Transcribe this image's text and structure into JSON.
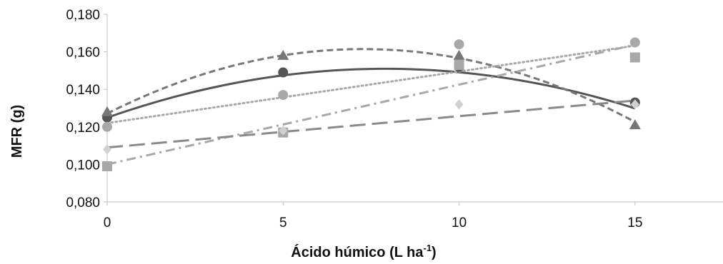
{
  "chart_data": {
    "type": "scatter",
    "xlabel": "Ácido húmico (L ha",
    "xlabel_sup": "-1",
    "xlabel_close": ")",
    "ylabel": "MFR (g)",
    "xlim": [
      0,
      17.5
    ],
    "ylim": [
      0.08,
      0.18
    ],
    "x_ticks": [
      "0",
      "5",
      "10",
      "15"
    ],
    "x_tick_values": [
      0,
      5,
      10,
      15
    ],
    "y_ticks": [
      "0,080",
      "0,100",
      "0,120",
      "0,140",
      "0,160",
      "0,180"
    ],
    "y_tick_values": [
      0.08,
      0.1,
      0.12,
      0.14,
      0.16,
      0.18
    ],
    "grid": false,
    "series": [
      {
        "marker": "circle",
        "color": "#555555",
        "marker_color": "#555555",
        "line_style": "solid",
        "x": [
          0,
          5,
          10,
          15
        ],
        "y": [
          0.125,
          0.149,
          0.152,
          0.133
        ],
        "trend": {
          "kind": "quadratic",
          "coef": [
            0.1249,
            0.0066,
            -0.000418
          ]
        }
      },
      {
        "marker": "triangle",
        "color": "#777777",
        "marker_color": "#777777",
        "line_style": "short-dash",
        "x": [
          0,
          5,
          10,
          15
        ],
        "y": [
          0.128,
          0.158,
          0.158,
          0.121
        ],
        "trend": {
          "kind": "quadratic",
          "coef": [
            0.1271,
            0.00945,
            -0.00065
          ]
        }
      },
      {
        "marker": "circle",
        "color": "#a8a8a8",
        "marker_color": "#a8a8a8",
        "line_style": "dotted",
        "x": [
          0,
          5,
          10,
          15
        ],
        "y": [
          0.12,
          0.137,
          0.164,
          0.165
        ],
        "trend": {
          "kind": "linear",
          "coef": [
            0.122,
            0.00275
          ]
        }
      },
      {
        "marker": "square",
        "color": "#a8a8a8",
        "marker_color": "#a8a8a8",
        "line_style": "dash-dot",
        "x": [
          0,
          5,
          10,
          15
        ],
        "y": [
          0.099,
          0.117,
          0.153,
          0.157
        ],
        "trend": {
          "kind": "linear",
          "coef": [
            0.1,
            0.00425
          ]
        }
      },
      {
        "marker": "diamond",
        "color": "#8a8a8a",
        "marker_color": "#d0d0d0",
        "line_style": "long-dash",
        "x": [
          0,
          5,
          10,
          15
        ],
        "y": [
          0.108,
          0.118,
          0.132,
          0.132
        ],
        "trend": {
          "kind": "linear",
          "coef": [
            0.109,
            0.00167
          ]
        }
      }
    ]
  }
}
